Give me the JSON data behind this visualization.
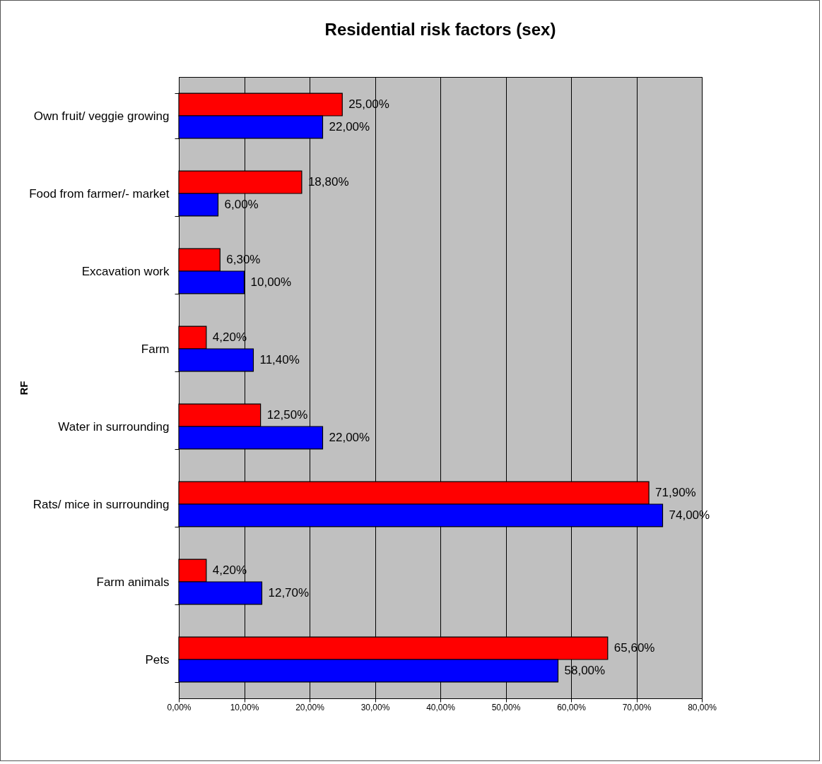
{
  "chart_data": {
    "type": "bar",
    "orientation": "horizontal",
    "title": "Residential risk factors (sex)",
    "ylabel": "RF",
    "categories": [
      "Own fruit/ veggie growing",
      "Food from farmer/- market",
      "Excavation work",
      "Farm ",
      "Water in surrounding",
      "Rats/ mice in surrounding",
      "Farm animals",
      "Pets"
    ],
    "series": [
      {
        "color": "#ff0000",
        "values": [
          25,
          18.8,
          6.3,
          4.2,
          12.5,
          71.9,
          4.2,
          65.6
        ],
        "value_labels": [
          "25,00%",
          "18,80%",
          "6,30%",
          "4,20%",
          "12,50%",
          "71,90%",
          "4,20%",
          "65,60%"
        ]
      },
      {
        "color": "#0000ff",
        "values": [
          22,
          6,
          10,
          11.4,
          22,
          74,
          12.7,
          58
        ],
        "value_labels": [
          "22,00%",
          "6,00%",
          "10,00%",
          "11,40%",
          "22,00%",
          "74,00%",
          "12,70%",
          "58,00%"
        ]
      }
    ],
    "xlim": [
      0,
      80
    ],
    "xticks": [
      {
        "value": 0,
        "label": "0,00%"
      },
      {
        "value": 10,
        "label": "10,00%"
      },
      {
        "value": 20,
        "label": "20,00%"
      },
      {
        "value": 30,
        "label": "30,00%"
      },
      {
        "value": 40,
        "label": "40,00%"
      },
      {
        "value": 50,
        "label": "50,00%"
      },
      {
        "value": 60,
        "label": "60,00%"
      },
      {
        "value": 70,
        "label": "70,00%"
      },
      {
        "value": 80,
        "label": "80,00%"
      }
    ],
    "grid": "x"
  }
}
